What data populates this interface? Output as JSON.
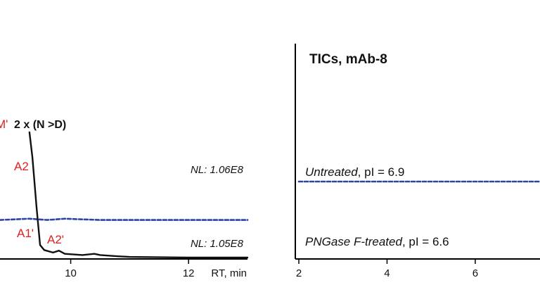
{
  "chart_data": [
    {
      "type": "line",
      "title": "",
      "xlabel": "RT, min",
      "ylabel": "",
      "xlim": [
        8.8,
        13.0
      ],
      "x_ticks": [
        10,
        12
      ],
      "grid": false,
      "annotations": {
        "glyco_label": "2 x (N >D)",
        "peak_m": "M'",
        "peak_a2": "A2",
        "peak_a1p": "A1'",
        "peak_a2p": "A2'"
      },
      "series": [
        {
          "style": "dashed",
          "color": "#2b45a0",
          "nl": "NL: 1.06E8",
          "x": [
            8.8,
            9.3,
            9.6,
            9.9,
            10.5,
            11.0,
            12.0,
            13.0
          ],
          "y": [
            0.3,
            0.31,
            0.3,
            0.31,
            0.3,
            0.3,
            0.3,
            0.3
          ]
        },
        {
          "style": "solid",
          "color": "#111111",
          "nl": "NL: 1.05E8",
          "x": [
            9.3,
            9.35,
            9.42,
            9.48,
            9.55,
            9.7,
            9.8,
            9.9,
            10.2,
            10.4,
            10.5,
            10.8,
            11.0,
            12.0,
            13.0
          ],
          "y": [
            1.0,
            0.8,
            0.4,
            0.1,
            0.06,
            0.04,
            0.055,
            0.03,
            0.02,
            0.03,
            0.02,
            0.01,
            0.005,
            0.0,
            0.0
          ]
        }
      ]
    },
    {
      "type": "line",
      "title": "TICs, mAb-8",
      "xlabel": "",
      "ylabel": "",
      "xlim": [
        2,
        7.5
      ],
      "x_ticks": [
        2,
        4,
        6
      ],
      "grid": false,
      "series": [
        {
          "style": "dashed",
          "color": "#2b45a0",
          "label": "Untreated",
          "pi_text": ", pI = 6.9",
          "x": [
            2,
            3,
            4,
            5,
            6,
            7.5
          ],
          "y": [
            0.5,
            0.5,
            0.5,
            0.5,
            0.5,
            0.5
          ]
        },
        {
          "style": "solid",
          "color": "#111111",
          "label": "PNGase F-treated",
          "pi_text": ", pI = 6.6",
          "x": [],
          "y": []
        }
      ]
    }
  ]
}
